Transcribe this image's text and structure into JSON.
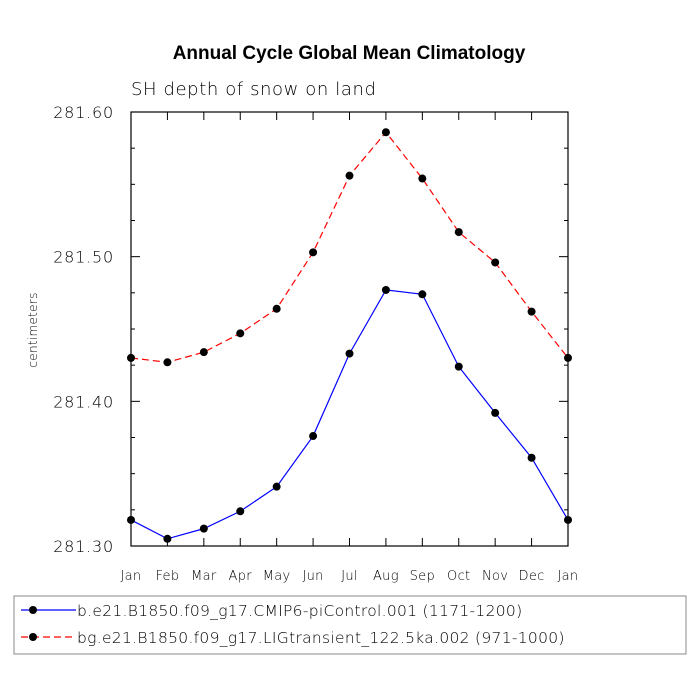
{
  "chart_data": {
    "type": "line",
    "title": "Annual Cycle Global Mean Climatology",
    "subtitle": "SH depth of snow on land",
    "ylabel": "centimeters",
    "xlabel": "",
    "ylim": [
      281.3,
      281.6
    ],
    "yticks": [
      "281.30",
      "281.40",
      "281.50",
      "281.60"
    ],
    "ytick_values": [
      281.3,
      281.4,
      281.5,
      281.6
    ],
    "categories": [
      "Jan",
      "Feb",
      "Mar",
      "Apr",
      "May",
      "Jun",
      "Jul",
      "Aug",
      "Sep",
      "Oct",
      "Nov",
      "Dec",
      "Jan"
    ],
    "grid": false,
    "legend_position": "bottom",
    "series": [
      {
        "name": "b.e21.B1850.f09_g17.CMIP6-piControl.001 (1171-1200)",
        "color": "#0000ff",
        "dash": "solid",
        "values": [
          281.318,
          281.305,
          281.312,
          281.324,
          281.341,
          281.376,
          281.433,
          281.477,
          281.474,
          281.424,
          281.392,
          281.361,
          281.318
        ]
      },
      {
        "name": "bg.e21.B1850.f09_g17.LIGtransient_122.5ka.002 (971-1000)",
        "color": "#ff0000",
        "dash": "dashed",
        "values": [
          281.43,
          281.427,
          281.434,
          281.447,
          281.464,
          281.503,
          281.556,
          281.586,
          281.554,
          281.517,
          281.496,
          281.462,
          281.43
        ]
      }
    ]
  }
}
